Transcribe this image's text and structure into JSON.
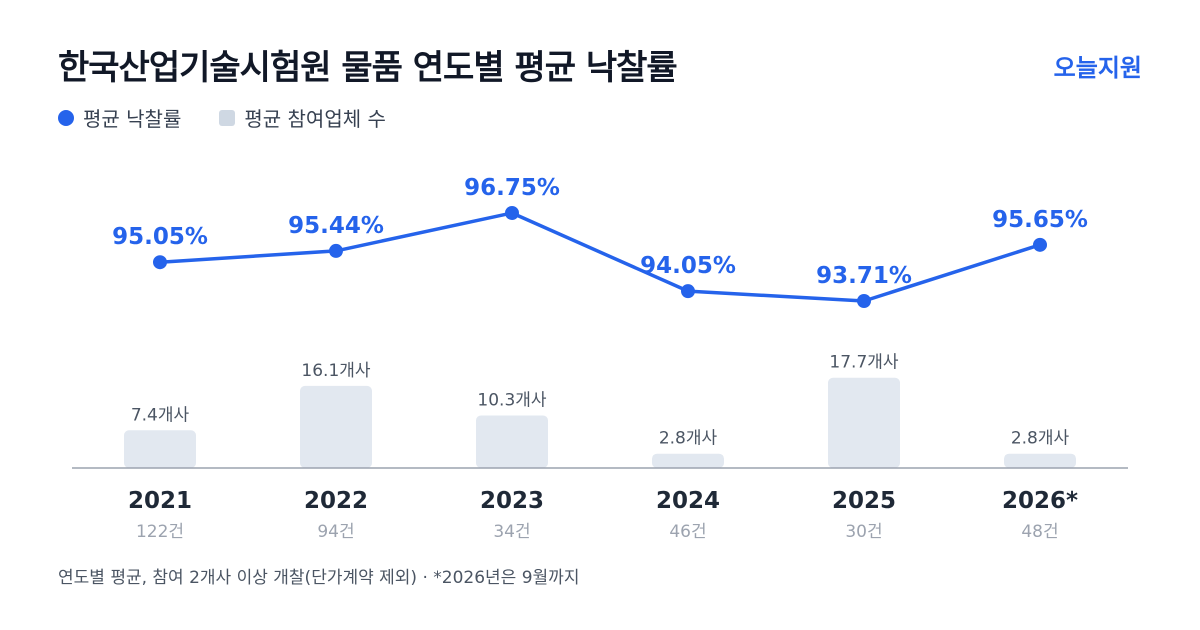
{
  "header": {
    "title": "한국산업기술시험원 물품 연도별 평균 낙찰률",
    "brand": "오늘지원"
  },
  "legend": {
    "items": [
      {
        "label": "평균 낙찰률",
        "color": "#2563eb"
      },
      {
        "label": "평균 참여업체 수",
        "color": "#cfd8e3"
      }
    ]
  },
  "chart_data": {
    "type": "bar",
    "categories": [
      "2021",
      "2022",
      "2023",
      "2024",
      "2025",
      "2026*"
    ],
    "sublabels": [
      "122건",
      "94건",
      "34건",
      "46건",
      "30건",
      "48건"
    ],
    "series": [
      {
        "name": "평균 낙찰률",
        "kind": "line",
        "values": [
          95.05,
          95.44,
          96.75,
          94.05,
          93.71,
          95.65
        ],
        "labels": [
          "95.05%",
          "95.44%",
          "96.75%",
          "94.05%",
          "93.71%",
          "95.65%"
        ],
        "color": "#2563eb"
      },
      {
        "name": "평균 참여업체 수",
        "kind": "bar",
        "values": [
          7.4,
          16.1,
          10.3,
          2.8,
          17.7,
          2.8
        ],
        "labels": [
          "7.4개사",
          "16.1개사",
          "10.3개사",
          "2.8개사",
          "17.7개사",
          "2.8개사"
        ],
        "color": "#e2e8f0"
      }
    ],
    "grid": false,
    "legend_position": "top-left"
  },
  "footnote": "연도별 평균, 참여 2개사 이상 개찰(단가계약 제외) · *2026년은 9월까지",
  "colors": {
    "accent": "#2563eb",
    "bar": "#e2e8f0",
    "axis": "#9ca3af",
    "text_dark": "#1f2937",
    "text_muted": "#9ca3af"
  }
}
